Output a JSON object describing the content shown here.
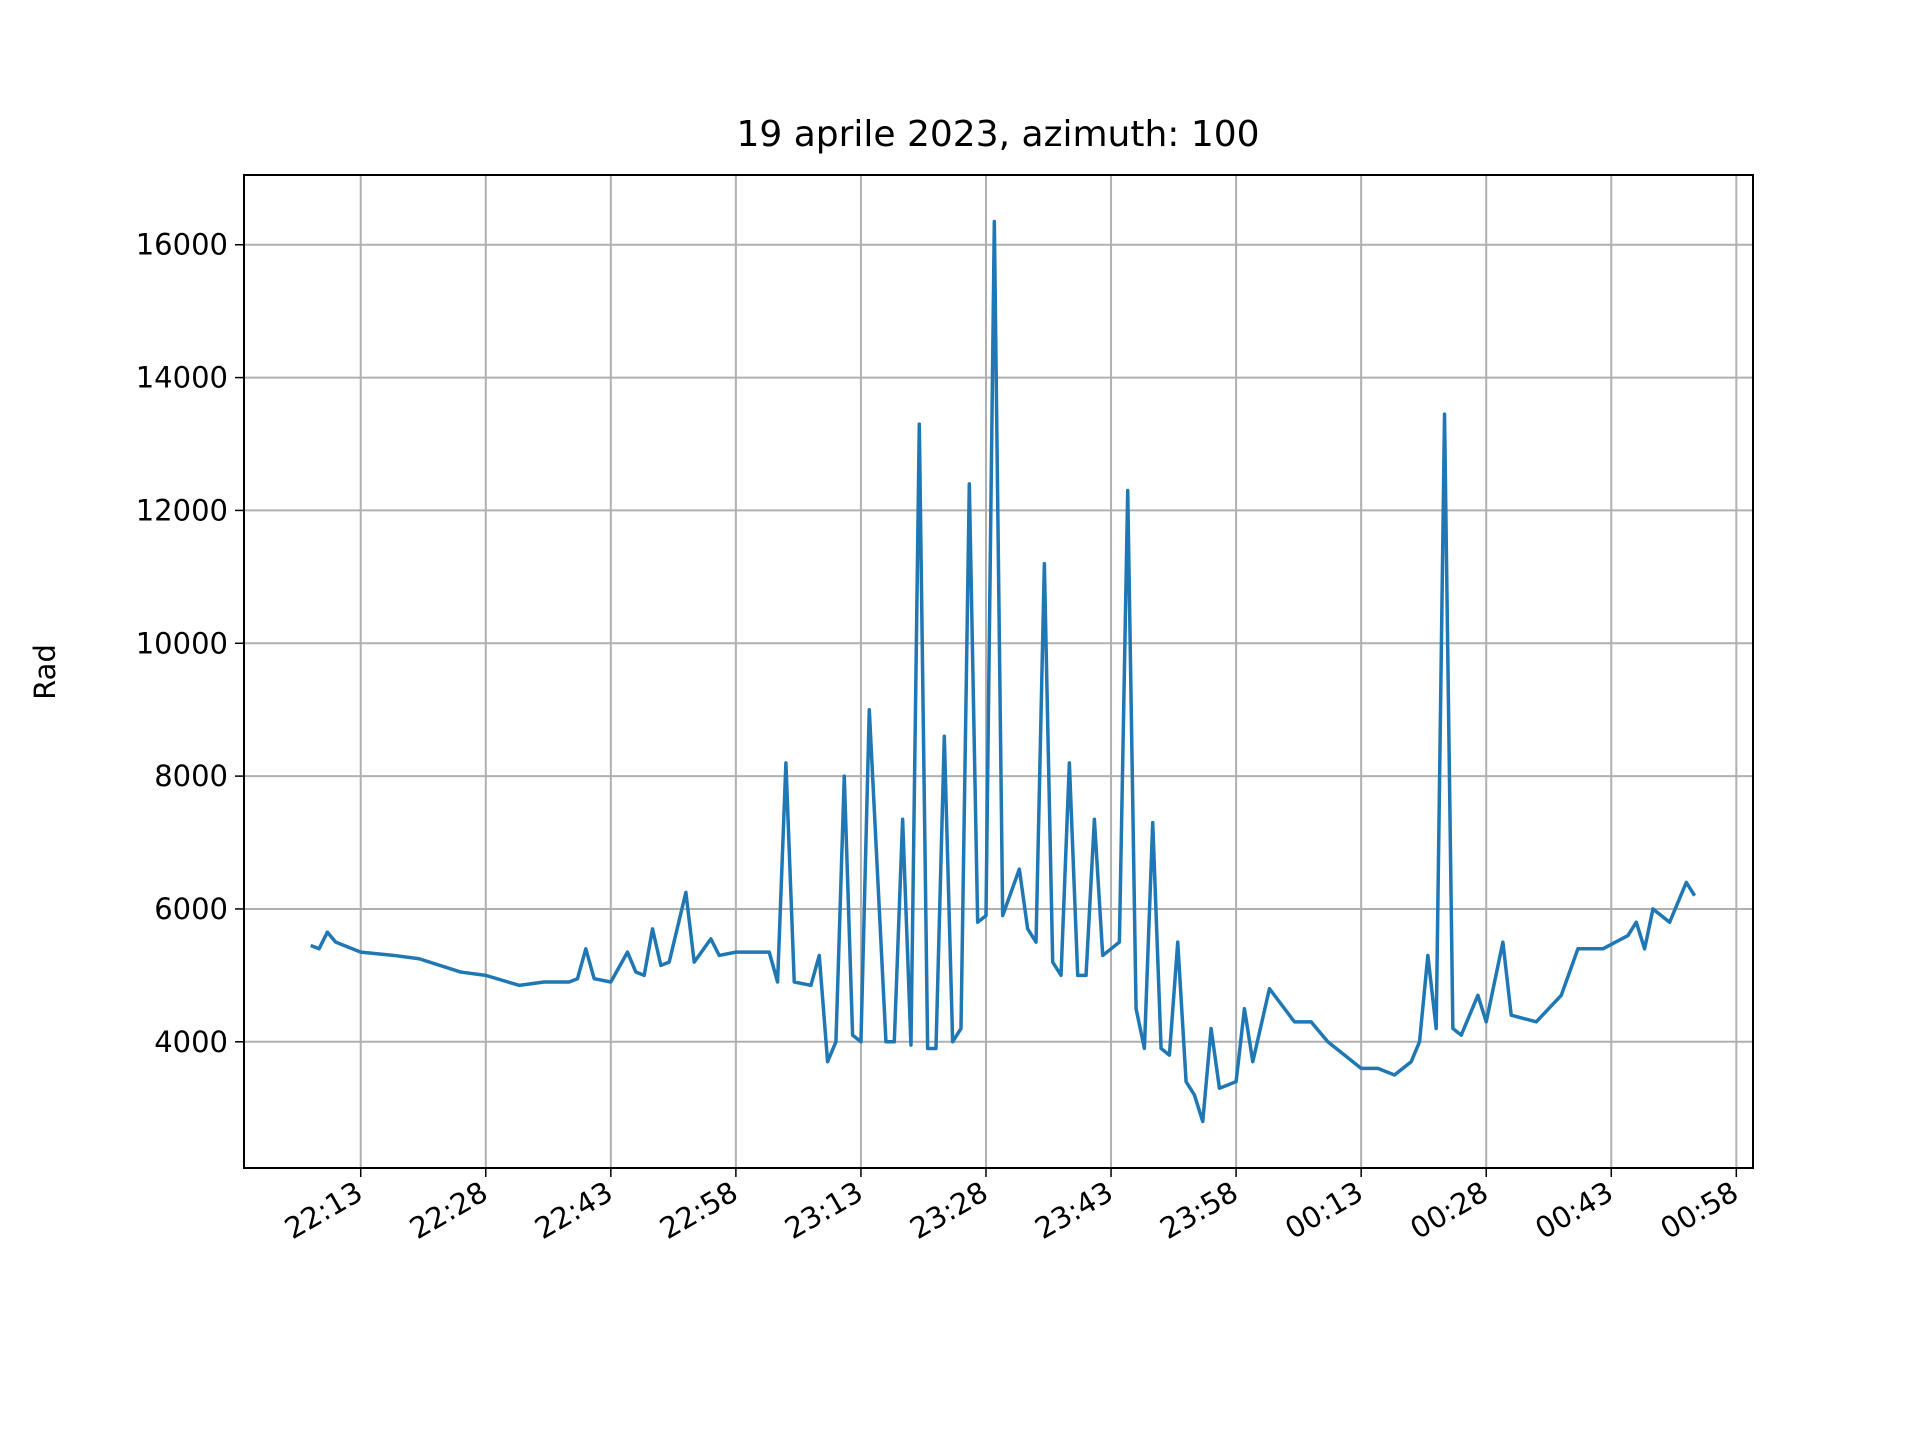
{
  "chart_data": {
    "type": "line",
    "title": "19 aprile 2023, azimuth: 100",
    "ylabel": "Rad",
    "color": "#1f77b4",
    "grid": true,
    "x": [
      "22:07",
      "22:08",
      "22:09",
      "22:10",
      "22:13",
      "22:17",
      "22:20",
      "22:25",
      "22:28",
      "22:32",
      "22:35",
      "22:38",
      "22:39",
      "22:40",
      "22:41",
      "22:43",
      "22:45",
      "22:46",
      "22:47",
      "22:48",
      "22:49",
      "22:50",
      "22:52",
      "22:53",
      "22:55",
      "22:56",
      "22:58",
      "23:02",
      "23:03",
      "23:04",
      "23:05",
      "23:07",
      "23:08",
      "23:09",
      "23:10",
      "23:11",
      "23:12",
      "23:13",
      "23:14",
      "23:16",
      "23:17",
      "23:18",
      "23:19",
      "23:20",
      "23:21",
      "23:22",
      "23:23",
      "23:24",
      "23:25",
      "23:26",
      "23:27",
      "23:28",
      "23:29",
      "23:30",
      "23:32",
      "23:33",
      "23:34",
      "23:35",
      "23:36",
      "23:37",
      "23:38",
      "23:39",
      "23:40",
      "23:41",
      "23:42",
      "23:43",
      "23:44",
      "23:45",
      "23:46",
      "23:47",
      "23:48",
      "23:49",
      "23:50",
      "23:51",
      "23:52",
      "23:53",
      "23:54",
      "23:55",
      "23:56",
      "23:57",
      "23:58",
      "23:59",
      "00:00",
      "00:02",
      "00:05",
      "00:07",
      "00:09",
      "00:13",
      "00:15",
      "00:17",
      "00:19",
      "00:20",
      "00:21",
      "00:22",
      "00:23",
      "00:24",
      "00:25",
      "00:27",
      "00:28",
      "00:30",
      "00:31",
      "00:34",
      "00:37",
      "00:39",
      "00:42",
      "00:45",
      "00:46",
      "00:47",
      "00:48",
      "00:50",
      "00:52",
      "00:53"
    ],
    "values": [
      5450,
      5400,
      5650,
      5500,
      5350,
      5300,
      5250,
      5050,
      5000,
      4850,
      4900,
      4900,
      4950,
      5400,
      4950,
      4900,
      5350,
      5050,
      5000,
      5700,
      5150,
      5200,
      6250,
      5200,
      5550,
      5300,
      5350,
      5350,
      4900,
      8200,
      4900,
      4850,
      5300,
      3700,
      4000,
      8000,
      4100,
      4000,
      9000,
      4000,
      4000,
      7350,
      3950,
      13300,
      3900,
      3900,
      8600,
      4000,
      4200,
      12400,
      5800,
      5900,
      16350,
      5900,
      6600,
      5700,
      5500,
      11200,
      5200,
      5000,
      8200,
      5000,
      5000,
      7350,
      5300,
      5400,
      5500,
      12300,
      4500,
      3900,
      7300,
      3900,
      3800,
      5500,
      3400,
      3200,
      2800,
      4200,
      3300,
      3350,
      3400,
      4500,
      3700,
      4800,
      4300,
      4300,
      4000,
      3600,
      3600,
      3500,
      3700,
      4000,
      5300,
      4200,
      13450,
      4200,
      4100,
      4700,
      4300,
      5500,
      4400,
      4300,
      4700,
      5400,
      5400,
      5600,
      5800,
      5400,
      6000,
      5800,
      6400,
      6200
    ],
    "xlim": [
      "21:59",
      "01:00"
    ],
    "xticks": [
      "22:13",
      "22:28",
      "22:43",
      "22:58",
      "23:13",
      "23:28",
      "23:43",
      "23:58",
      "00:13",
      "00:28",
      "00:43",
      "00:58"
    ],
    "ylim": [
      2100,
      17050
    ],
    "yticks": [
      4000,
      6000,
      8000,
      10000,
      12000,
      14000,
      16000
    ]
  }
}
